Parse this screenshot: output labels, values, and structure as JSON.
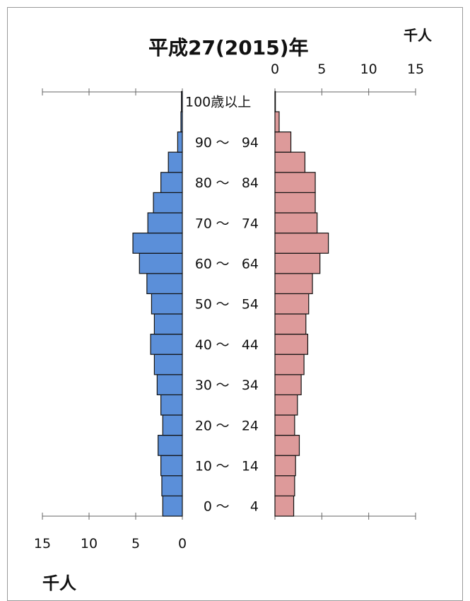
{
  "title": "平成27(2015)年",
  "unit_top": "千人",
  "unit_bottom": "千人",
  "colors": {
    "male": "#5b8fd9",
    "female": "#dd9a9a",
    "outline": "#111111",
    "axis": "#666666"
  },
  "chart_data": {
    "type": "bar",
    "orientation": "horizontal-population-pyramid",
    "xlim": [
      0,
      15
    ],
    "ticks": [
      0,
      5,
      10,
      15
    ],
    "top_tick_labels": [
      "0",
      "5",
      "10",
      "15"
    ],
    "bottom_tick_labels": [
      "15",
      "10",
      "5",
      "0"
    ],
    "age_labels": [
      {
        "lo": "0",
        "hi": "4"
      },
      {
        "lo": "10",
        "hi": "14"
      },
      {
        "lo": "20",
        "hi": "24"
      },
      {
        "lo": "30",
        "hi": "34"
      },
      {
        "lo": "40",
        "hi": "44"
      },
      {
        "lo": "50",
        "hi": "54"
      },
      {
        "lo": "60",
        "hi": "64"
      },
      {
        "lo": "70",
        "hi": "74"
      },
      {
        "lo": "80",
        "hi": "84"
      },
      {
        "lo": "90",
        "hi": "94"
      }
    ],
    "age_tilde": "～",
    "top_age_label": "100歳以上",
    "categories": [
      "0-4",
      "5-9",
      "10-14",
      "15-19",
      "20-24",
      "25-29",
      "30-34",
      "35-39",
      "40-44",
      "45-49",
      "50-54",
      "55-59",
      "60-64",
      "65-69",
      "70-74",
      "75-79",
      "80-84",
      "85-89",
      "90-94",
      "95-99",
      "100+"
    ],
    "series": [
      {
        "side": "left",
        "values": [
          2.1,
          2.2,
          2.3,
          2.6,
          2.1,
          2.3,
          2.7,
          3.0,
          3.4,
          3.0,
          3.3,
          3.8,
          4.6,
          5.3,
          3.7,
          3.1,
          2.3,
          1.5,
          0.5,
          0.15,
          0.1
        ]
      },
      {
        "side": "right",
        "values": [
          2.0,
          2.1,
          2.2,
          2.6,
          2.1,
          2.4,
          2.8,
          3.1,
          3.5,
          3.3,
          3.6,
          4.0,
          4.8,
          5.7,
          4.5,
          4.3,
          4.3,
          3.2,
          1.7,
          0.45,
          0.05
        ]
      }
    ]
  }
}
